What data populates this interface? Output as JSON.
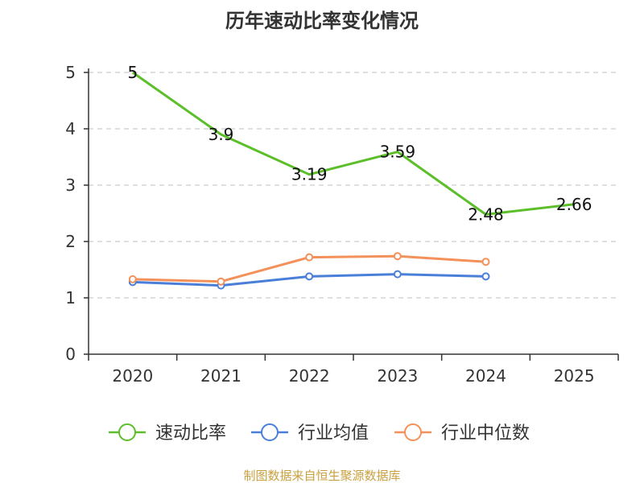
{
  "chart_data": {
    "type": "line",
    "title": "历年速动比率变化情况",
    "categories": [
      "2020",
      "2021",
      "2022",
      "2023",
      "2024",
      "2025"
    ],
    "ylim": [
      0,
      5
    ],
    "yticks": [
      0,
      1,
      2,
      3,
      4,
      5
    ],
    "grid": true,
    "legend_position": "bottom",
    "series": [
      {
        "name": "速动比率",
        "color": "#5cbf2a",
        "values": [
          5,
          3.9,
          3.19,
          3.59,
          2.48,
          2.66
        ],
        "labels": [
          "5",
          "3.9",
          "3.19",
          "3.59",
          "2.48",
          "2.66"
        ],
        "markers": false
      },
      {
        "name": "行业均值",
        "color": "#4a7fd9",
        "values": [
          1.28,
          1.22,
          1.38,
          1.42,
          1.38,
          null
        ],
        "markers": true
      },
      {
        "name": "行业中位数",
        "color": "#f4905a",
        "values": [
          1.33,
          1.29,
          1.72,
          1.74,
          1.64,
          null
        ],
        "markers": true
      }
    ],
    "source": "制图数据来自恒生聚源数据库"
  }
}
